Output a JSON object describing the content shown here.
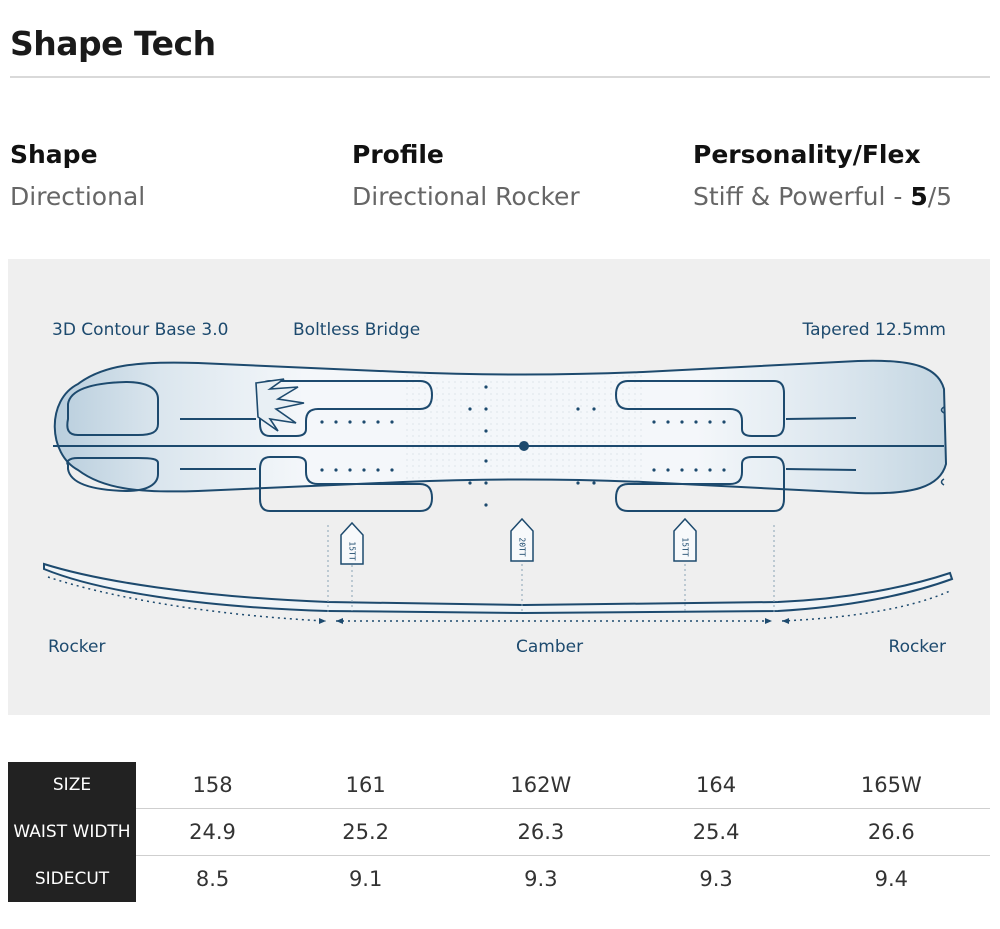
{
  "page_title": "Shape Tech",
  "specs": {
    "shape": {
      "label": "Shape",
      "value": "Directional"
    },
    "profile": {
      "label": "Profile",
      "value": "Directional Rocker"
    },
    "flex": {
      "label": "Personality/Flex",
      "value_prefix": "Stiff & Powerful - ",
      "rating": "5",
      "rating_max": "/5"
    }
  },
  "diagram": {
    "labels": {
      "contour": "3D Contour Base 3.0",
      "bridge": "Boltless Bridge",
      "taper": "Tapered 12.5mm",
      "rocker_left": "Rocker",
      "camber": "Camber",
      "rocker_right": "Rocker"
    },
    "stance_markers": [
      "15TT",
      "20TT",
      "15TT"
    ],
    "colors": {
      "outline": "#1d4a6e",
      "board_fill": "#f3f7fa",
      "board_shade": "#c9d8e3"
    }
  },
  "size_table": {
    "headers": [
      "SIZE",
      "WAIST WIDTH",
      "SIDECUT"
    ],
    "rows": [
      [
        "158",
        "161",
        "162W",
        "164",
        "165W"
      ],
      [
        "24.9",
        "25.2",
        "26.3",
        "25.4",
        "26.6"
      ],
      [
        "8.5",
        "9.1",
        "9.3",
        "9.3",
        "9.4"
      ]
    ]
  }
}
